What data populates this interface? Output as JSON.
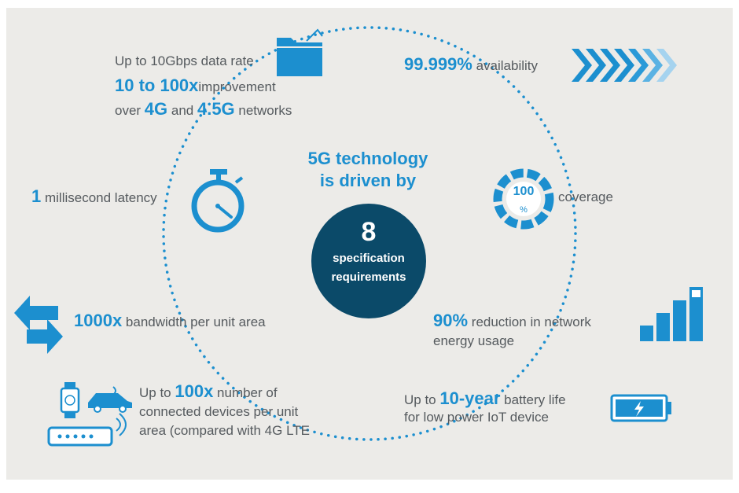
{
  "center": {
    "title_line1": "5G technology",
    "title_line2": "is driven by",
    "count": "8",
    "label_line1": "specification",
    "label_line2": "requirements"
  },
  "items": {
    "data_rate": {
      "line1": "Up to 10Gbps data rate",
      "line2_em": "10 to 100x",
      "line2_rest": "improvement",
      "line3_a": "over ",
      "line3_em1": "4G",
      "line3_b": " and ",
      "line3_em2": "4.5G",
      "line3_c": " networks"
    },
    "availability": {
      "value": "99.999%",
      "label": "availability"
    },
    "latency": {
      "value": "1",
      "label": "millisecond latency"
    },
    "coverage": {
      "gauge_value": "100",
      "gauge_unit": "%",
      "label": "coverage"
    },
    "bandwidth": {
      "value": "1000x",
      "label": "bandwidth per unit area"
    },
    "energy": {
      "value": "90%",
      "line1_rest": "reduction in network",
      "line2": "energy usage"
    },
    "devices": {
      "line1_a": "Up to ",
      "line1_em": "100x",
      "line1_b": " number of",
      "line2": "connected devices per unit",
      "line3": "area (compared with 4G LTE"
    },
    "battery": {
      "line1_a": "Up to ",
      "line1_em": "10-year",
      "line1_b": " battery life",
      "line2": "for low power IoT device"
    }
  },
  "colors": {
    "accent": "#1c8fcf",
    "hub": "#0b4a69",
    "text": "#555a5e",
    "background": "#ecebe8"
  },
  "icons": [
    "folder-icon",
    "chevrons-icon",
    "stopwatch-icon",
    "gauge-icon",
    "arrows-icon",
    "signal-bars-icon",
    "devices-icon",
    "battery-icon"
  ]
}
